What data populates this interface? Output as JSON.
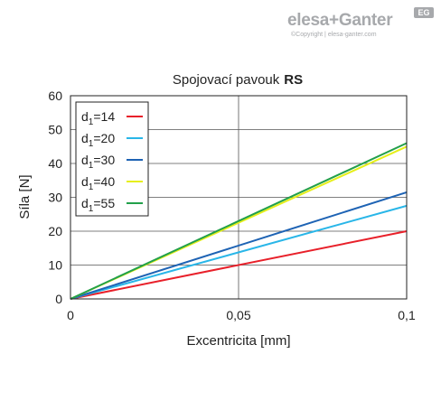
{
  "brand": {
    "logo_text": "elesa+Ganter",
    "logo_badge": "EG",
    "copyright": "©Copyright | elesa-ganter.com"
  },
  "chart_data": {
    "type": "line",
    "title": "Spojovací pavouk",
    "title_bold": "RS",
    "xlabel": "Excentricita [mm]",
    "ylabel": "Síla [N]",
    "xlim": [
      0,
      0.1
    ],
    "ylim": [
      0,
      60
    ],
    "x_ticks": [
      0,
      0.05,
      0.1
    ],
    "x_tick_labels": [
      "0",
      "0,05",
      "0,1"
    ],
    "y_ticks": [
      0,
      10,
      20,
      30,
      40,
      50,
      60
    ],
    "y_tick_labels": [
      "0",
      "10",
      "20",
      "30",
      "40",
      "50",
      "60"
    ],
    "grid": true,
    "legend_position": "top-left",
    "series": [
      {
        "name": "d1=14",
        "label_main": "d",
        "label_sub": "1",
        "label_rest": "=14",
        "color": "#e8202a",
        "x": [
          0,
          0.1
        ],
        "y": [
          0,
          20
        ]
      },
      {
        "name": "d1=20",
        "label_main": "d",
        "label_sub": "1",
        "label_rest": "=20",
        "color": "#29b6e8",
        "x": [
          0,
          0.1
        ],
        "y": [
          0,
          27.5
        ]
      },
      {
        "name": "d1=30",
        "label_main": "d",
        "label_sub": "1",
        "label_rest": "=30",
        "color": "#1e63b4",
        "x": [
          0,
          0.1
        ],
        "y": [
          0,
          31.5
        ]
      },
      {
        "name": "d1=40",
        "label_main": "d",
        "label_sub": "1",
        "label_rest": "=40",
        "color": "#e6ef1a",
        "x": [
          0,
          0.1
        ],
        "y": [
          0,
          45
        ]
      },
      {
        "name": "d1=55",
        "label_main": "d",
        "label_sub": "1",
        "label_rest": "=55",
        "color": "#22a04a",
        "x": [
          0,
          0.1
        ],
        "y": [
          0,
          46
        ]
      }
    ]
  }
}
